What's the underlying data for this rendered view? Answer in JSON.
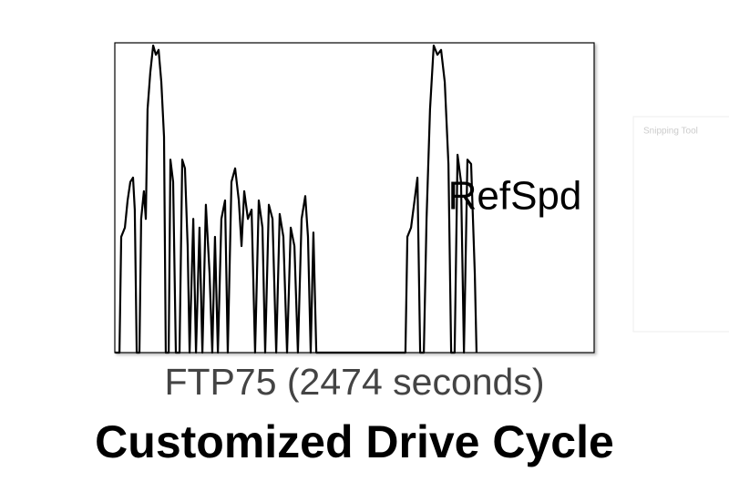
{
  "background_window": {
    "title": "Snipping Tool"
  },
  "chart_data": {
    "type": "line",
    "title": "Customized Drive Cycle",
    "subtitle": "FTP75 (2474  seconds)",
    "xlim": [
      0,
      2474
    ],
    "ylim": [
      0,
      57
    ],
    "series": [
      {
        "name": "RefSpd",
        "color": "#000000",
        "x": [
          2,
          24,
          33,
          52,
          66,
          80,
          94,
          103,
          113,
          127,
          136,
          150,
          160,
          169,
          183,
          198,
          212,
          226,
          240,
          254,
          263,
          278,
          287,
          301,
          315,
          334,
          348,
          362,
          376,
          386,
          405,
          419,
          437,
          452,
          470,
          489,
          503,
          517,
          532,
          550,
          569,
          583,
          602,
          621,
          640,
          654,
          668,
          687,
          706,
          724,
          743,
          762,
          776,
          795,
          814,
          833,
          851,
          870,
          889,
          908,
          927,
          945,
          964,
          983,
          997,
          1011,
          1025,
          1040,
          1500,
          1510,
          1529,
          1547,
          1562,
          1576,
          1595,
          1609,
          1627,
          1646,
          1665,
          1684,
          1703,
          1722,
          1736,
          1754,
          1769,
          1787,
          1802,
          1820,
          1839,
          1858,
          1867
        ],
        "values": [
          0,
          0,
          21.3,
          23,
          28,
          31.4,
          32.2,
          26.3,
          0,
          0,
          24.6,
          29.7,
          24.6,
          44.8,
          51.5,
          56.5,
          54.8,
          55.7,
          49.8,
          39.7,
          0,
          0,
          35.5,
          31.4,
          0,
          0,
          35.5,
          33.9,
          19.6,
          0,
          24.6,
          0,
          23,
          0,
          27.2,
          14.6,
          0,
          21.3,
          0,
          24.6,
          28,
          0,
          31.4,
          33.9,
          28,
          19.6,
          29.7,
          24.6,
          26.3,
          0,
          28,
          23,
          0,
          27.2,
          24.6,
          0,
          25.5,
          21.3,
          0,
          23,
          19.6,
          0,
          24.6,
          28.8,
          21.3,
          0,
          22.1,
          0,
          0,
          21.3,
          23,
          28,
          32.2,
          0,
          0,
          24.6,
          44.8,
          56.5,
          54.8,
          55.7,
          49.8,
          34.7,
          0,
          0,
          36.4,
          31.4,
          0,
          35.5,
          34.7,
          14.6,
          0
        ]
      }
    ]
  }
}
